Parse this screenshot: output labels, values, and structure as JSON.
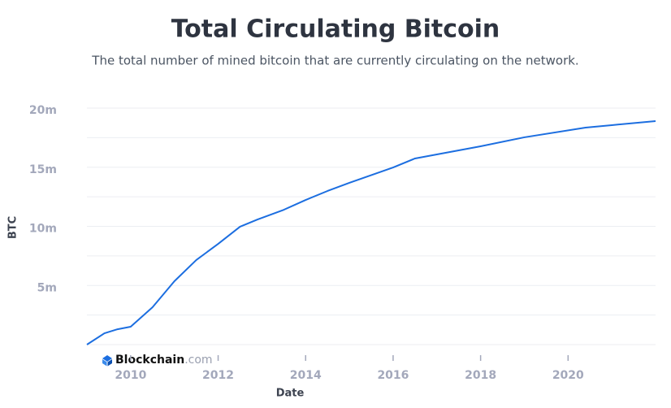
{
  "chart_data": {
    "type": "line",
    "title": "Total Circulating Bitcoin",
    "subtitle": "The total number of mined bitcoin that are currently circulating on the network.",
    "x_label": "Date",
    "y_label": "BTC",
    "watermark": {
      "brand": "Blockchain",
      "suffix": ".com"
    },
    "xlim": [
      2009,
      2022
    ],
    "xticks": [
      2010,
      2012,
      2014,
      2016,
      2018,
      2020
    ],
    "ylim": [
      0,
      20000000
    ],
    "yticks": [
      {
        "value": 5000000,
        "label": "5m"
      },
      {
        "value": 10000000,
        "label": "10m"
      },
      {
        "value": 15000000,
        "label": "15m"
      },
      {
        "value": 20000000,
        "label": "20m"
      }
    ],
    "minor_yticks": [
      0,
      2500000,
      7500000,
      12500000,
      17500000
    ],
    "grid": true,
    "series": [
      {
        "name": "BTC",
        "color": "#1c6ee0",
        "x": [
          2009.0,
          2009.4,
          2009.7,
          2010.0,
          2010.5,
          2011.0,
          2011.5,
          2012.0,
          2012.5,
          2012.9,
          2013.5,
          2014.0,
          2014.5,
          2015.0,
          2016.0,
          2016.5,
          2017.0,
          2018.0,
          2019.0,
          2020.4,
          2021.0,
          2022.0
        ],
        "values": [
          0,
          960000,
          1300000,
          1510000,
          3160000,
          5360000,
          7150000,
          8520000,
          9970000,
          10580000,
          11400000,
          12230000,
          12990000,
          13680000,
          14980000,
          15740000,
          16080000,
          16770000,
          17530000,
          18350000,
          18560000,
          18900000
        ]
      }
    ]
  }
}
